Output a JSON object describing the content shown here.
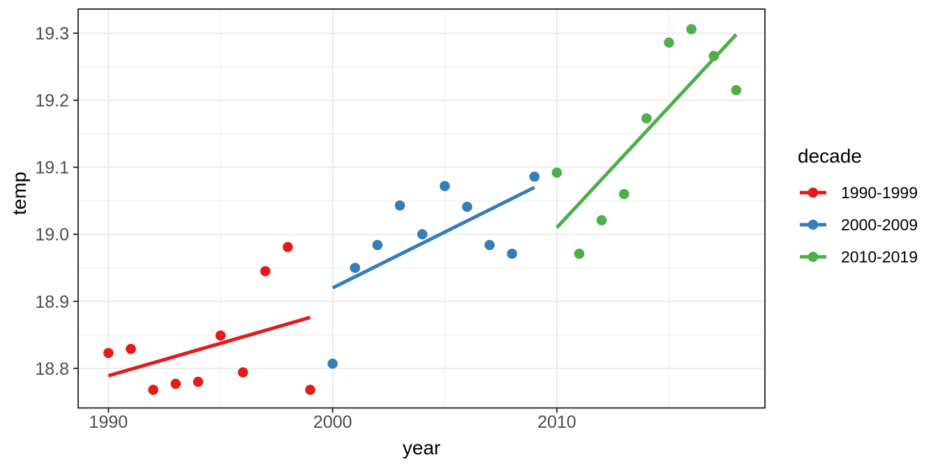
{
  "colors": {
    "background": "#FFFFFF",
    "panel_background": "#FFFFFF",
    "grid_major": "#EBEBEB",
    "grid_minor": "#F0F0F0",
    "panel_border": "#333333",
    "tick_mark": "#333333",
    "tick_label": "#4D4D4D",
    "title_text": "#000000"
  },
  "chart_data": {
    "type": "scatter",
    "title": "",
    "xlabel": "year",
    "ylabel": "temp",
    "legend_title": "decade",
    "legend_position": "right",
    "grid": true,
    "xlim": [
      1988.65,
      2019.28
    ],
    "ylim": [
      18.741,
      19.336
    ],
    "x_ticks": [
      1990,
      2000,
      2010
    ],
    "x_tick_labels": [
      "1990",
      "2000",
      "2010"
    ],
    "x_minor_ticks": [
      1995,
      2005,
      2015
    ],
    "y_ticks": [
      18.8,
      18.9,
      19.0,
      19.1,
      19.2,
      19.3
    ],
    "y_tick_labels": [
      "18.8",
      "18.9",
      "19.0",
      "19.1",
      "19.2",
      "19.3"
    ],
    "y_minor_ticks": [
      18.75,
      18.85,
      18.95,
      19.05,
      19.15,
      19.25
    ],
    "series": [
      {
        "name": "1990-1999",
        "color": "#E41A1C",
        "points": [
          [
            1990,
            18.823
          ],
          [
            1991,
            18.829
          ],
          [
            1992,
            18.768
          ],
          [
            1993,
            18.777
          ],
          [
            1994,
            18.78
          ],
          [
            1995,
            18.849
          ],
          [
            1996,
            18.794
          ],
          [
            1997,
            18.945
          ],
          [
            1998,
            18.981
          ],
          [
            1999,
            18.768
          ]
        ],
        "trend_line": [
          [
            1990,
            18.789
          ],
          [
            1999,
            18.876
          ]
        ]
      },
      {
        "name": "2000-2009",
        "color": "#377EB8",
        "points": [
          [
            2000,
            18.807
          ],
          [
            2001,
            18.95
          ],
          [
            2002,
            18.984
          ],
          [
            2003,
            19.043
          ],
          [
            2004,
            19.0
          ],
          [
            2005,
            19.072
          ],
          [
            2006,
            19.041
          ],
          [
            2007,
            18.984
          ],
          [
            2008,
            18.971
          ],
          [
            2009,
            19.086
          ]
        ],
        "trend_line": [
          [
            2000,
            18.92
          ],
          [
            2009,
            19.07
          ]
        ]
      },
      {
        "name": "2010-2019",
        "color": "#4DAF4A",
        "points": [
          [
            2010,
            19.092
          ],
          [
            2011,
            18.971
          ],
          [
            2012,
            19.021
          ],
          [
            2013,
            19.06
          ],
          [
            2014,
            19.173
          ],
          [
            2015,
            19.286
          ],
          [
            2016,
            19.306
          ],
          [
            2017,
            19.266
          ],
          [
            2018,
            19.215
          ]
        ],
        "trend_line": [
          [
            2010,
            19.01
          ],
          [
            2018,
            19.298
          ]
        ]
      }
    ]
  }
}
